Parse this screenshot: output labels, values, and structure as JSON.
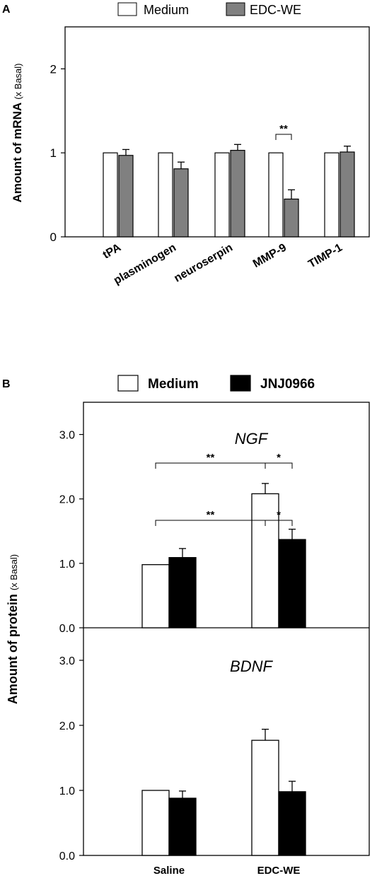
{
  "chart_data": [
    {
      "panel_label": "A",
      "type": "bar",
      "categories": [
        "tPA",
        "plasminogen",
        "neuroserpin",
        "MMP-9",
        "TIMP-1"
      ],
      "series": [
        {
          "name": "Medium",
          "color": "#ffffff",
          "values": [
            1.0,
            1.0,
            1.0,
            1.0,
            1.0
          ],
          "errors": [
            0,
            0,
            0,
            0,
            0
          ]
        },
        {
          "name": "EDC-WE",
          "color": "#808080",
          "values": [
            0.97,
            0.81,
            1.03,
            0.45,
            1.01
          ],
          "errors": [
            0.07,
            0.08,
            0.07,
            0.11,
            0.07
          ]
        }
      ],
      "ylabel_main": "Amount of mRNA",
      "ylabel_unit": "(x Basal)",
      "ylim": [
        0,
        2.5
      ],
      "yticks": [
        "0",
        "1",
        "2"
      ],
      "yticks_values": [
        0,
        1,
        2
      ],
      "significance": [
        {
          "category": "MMP-9",
          "label": "**"
        }
      ],
      "grid": false,
      "legend": "top"
    },
    {
      "panel_label": "B",
      "type": "bar",
      "categories": [
        "Saline",
        "EDC-WE"
      ],
      "series": [
        {
          "name": "Medium",
          "color": "#ffffff"
        },
        {
          "name": "JNJ0966",
          "color": "#000000"
        }
      ],
      "ylabel_main": "Amount of protein",
      "ylabel_unit": "(x Basal)",
      "ylim": [
        0,
        3.5
      ],
      "yticks": [
        "0.0",
        "1.0",
        "2.0",
        "3.0"
      ],
      "yticks_values": [
        0,
        1,
        2,
        3
      ],
      "legend": "top",
      "grid": false,
      "subpanels": [
        {
          "title": "NGF",
          "values": {
            "Medium": [
              0.98,
              2.08
            ],
            "JNJ0966": [
              1.09,
              1.37
            ]
          },
          "errors": {
            "Medium": [
              0,
              0.16
            ],
            "JNJ0966": [
              0.14,
              0.16
            ]
          },
          "significance": [
            {
              "label": "**",
              "from": "Saline/Medium",
              "to": "EDC-WE/Medium"
            },
            {
              "label": "*",
              "from": "EDC-WE/Medium",
              "to": "EDC-WE/JNJ0966"
            }
          ]
        },
        {
          "title": "BDNF",
          "values": {
            "Medium": [
              1.0,
              1.77
            ],
            "JNJ0966": [
              0.88,
              0.98
            ]
          },
          "errors": {
            "Medium": [
              0,
              0.17
            ],
            "JNJ0966": [
              0.11,
              0.16
            ]
          },
          "significance": [
            {
              "label": "**",
              "from": "Saline/Medium",
              "to": "EDC-WE/Medium"
            },
            {
              "label": "*",
              "from": "EDC-WE/Medium",
              "to": "EDC-WE/JNJ0966"
            }
          ]
        }
      ]
    }
  ]
}
